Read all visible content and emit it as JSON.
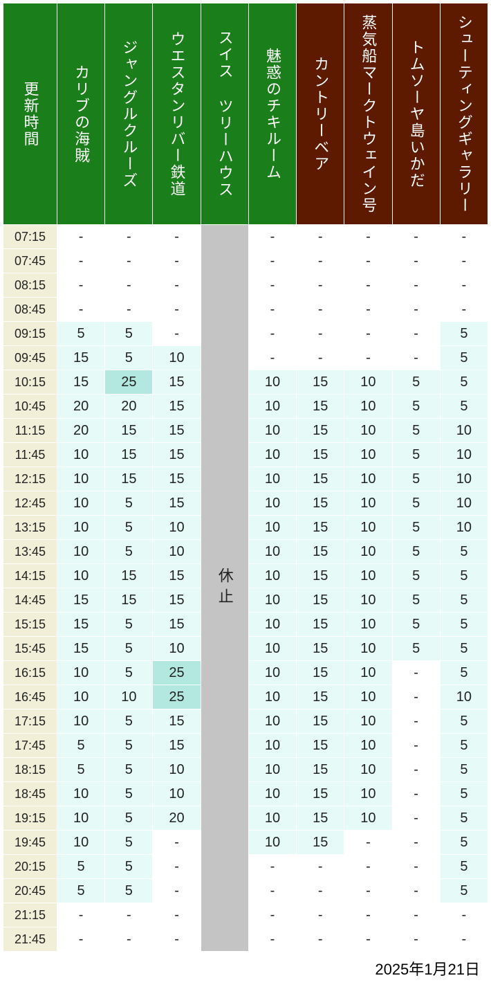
{
  "footer_date": "2025年1月21日",
  "closed_label": "休止",
  "colors": {
    "header_green": "#1a7e1a",
    "header_brown": "#5e1a00",
    "time_col_bg": "#f2efd9",
    "white": "#ffffff",
    "light_cyan": "#e6fbf8",
    "mid_cyan": "#b3e8e0",
    "grey_closed": "#c4c4c4",
    "text_dark": "#222222"
  },
  "columns": [
    {
      "label": "更新時間",
      "bg_key": "header_green",
      "is_time": true
    },
    {
      "label": "カリブの海賊",
      "bg_key": "header_green"
    },
    {
      "label": "ジャングルクルーズ",
      "bg_key": "header_green"
    },
    {
      "label": "ウエスタンリバー鉄道",
      "bg_key": "header_green"
    },
    {
      "label": "スイス ツリーハウス",
      "bg_key": "header_green",
      "closed": true
    },
    {
      "label": "魅惑のチキルーム",
      "bg_key": "header_green"
    },
    {
      "label": "カントリーベア",
      "bg_key": "header_brown"
    },
    {
      "label": "蒸気船マークトウェイン号",
      "bg_key": "header_brown"
    },
    {
      "label": "トムソーヤ島いかだ",
      "bg_key": "header_brown"
    },
    {
      "label": "シューティングギャラリー",
      "bg_key": "header_brown"
    }
  ],
  "value_color_thresholds": {
    "none": "white",
    "low": "light_cyan",
    "high": "mid_cyan",
    "high_min": 25
  },
  "times": [
    "07:15",
    "07:45",
    "08:15",
    "08:45",
    "09:15",
    "09:45",
    "10:15",
    "10:45",
    "11:15",
    "11:45",
    "12:15",
    "12:45",
    "13:15",
    "13:45",
    "14:15",
    "14:45",
    "15:15",
    "15:45",
    "16:15",
    "16:45",
    "17:15",
    "17:45",
    "18:15",
    "18:45",
    "19:15",
    "19:45",
    "20:15",
    "20:45",
    "21:15",
    "21:45"
  ],
  "data": {
    "カリブの海賊": [
      "-",
      "-",
      "-",
      "-",
      "5",
      "15",
      "15",
      "20",
      "20",
      "10",
      "10",
      "10",
      "10",
      "10",
      "10",
      "15",
      "15",
      "15",
      "10",
      "10",
      "10",
      "5",
      "5",
      "10",
      "10",
      "10",
      "5",
      "5",
      "-",
      "-"
    ],
    "ジャングルクルーズ": [
      "-",
      "-",
      "-",
      "-",
      "5",
      "5",
      "25",
      "20",
      "15",
      "15",
      "15",
      "5",
      "5",
      "5",
      "15",
      "15",
      "5",
      "5",
      "5",
      "10",
      "5",
      "5",
      "5",
      "5",
      "5",
      "5",
      "5",
      "5",
      "-",
      "-"
    ],
    "ウエスタンリバー鉄道": [
      "-",
      "-",
      "-",
      "-",
      "-",
      "10",
      "15",
      "15",
      "15",
      "15",
      "15",
      "15",
      "10",
      "10",
      "15",
      "15",
      "15",
      "10",
      "25",
      "25",
      "15",
      "15",
      "10",
      "10",
      "20",
      "-",
      "-",
      "-",
      "-",
      "-"
    ],
    "魅惑のチキルーム": [
      "-",
      "-",
      "-",
      "-",
      "-",
      "-",
      "10",
      "10",
      "10",
      "10",
      "10",
      "10",
      "10",
      "10",
      "10",
      "10",
      "10",
      "10",
      "10",
      "10",
      "10",
      "10",
      "10",
      "10",
      "10",
      "10",
      "-",
      "-",
      "-",
      "-"
    ],
    "カントリーベア": [
      "-",
      "-",
      "-",
      "-",
      "-",
      "-",
      "15",
      "15",
      "15",
      "15",
      "15",
      "15",
      "15",
      "15",
      "15",
      "15",
      "15",
      "15",
      "15",
      "15",
      "15",
      "15",
      "15",
      "15",
      "15",
      "15",
      "-",
      "-",
      "-",
      "-"
    ],
    "蒸気船マークトウェイン号": [
      "-",
      "-",
      "-",
      "-",
      "-",
      "-",
      "10",
      "10",
      "10",
      "10",
      "10",
      "10",
      "10",
      "10",
      "10",
      "10",
      "10",
      "10",
      "10",
      "10",
      "10",
      "10",
      "10",
      "10",
      "10",
      "-",
      "-",
      "-",
      "-",
      "-"
    ],
    "トムソーヤ島いかだ": [
      "-",
      "-",
      "-",
      "-",
      "-",
      "-",
      "5",
      "5",
      "5",
      "5",
      "5",
      "5",
      "5",
      "5",
      "5",
      "5",
      "5",
      "5",
      "-",
      "-",
      "-",
      "-",
      "-",
      "-",
      "-",
      "-",
      "-",
      "-",
      "-",
      "-"
    ],
    "シューティングギャラリー": [
      "-",
      "-",
      "-",
      "-",
      "5",
      "5",
      "5",
      "5",
      "10",
      "10",
      "10",
      "10",
      "10",
      "5",
      "5",
      "5",
      "5",
      "5",
      "5",
      "10",
      "5",
      "5",
      "5",
      "5",
      "5",
      "5",
      "5",
      "5",
      "-",
      "-"
    ]
  }
}
